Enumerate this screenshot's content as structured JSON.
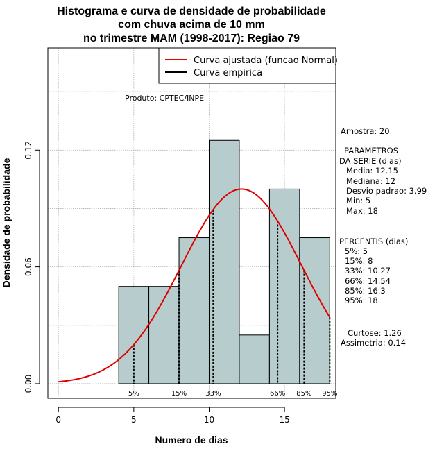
{
  "chart_data": {
    "type": "bar",
    "title_lines": [
      "Histograma e curva de densidade de probabilidade",
      "com chuva acima de 10 mm",
      "no trimestre MAM (1998-2017): Regiao 79"
    ],
    "xlabel": "Numero de dias",
    "ylabel": "Densidade de probabilidade",
    "xlim": [
      -0.7,
      18.4
    ],
    "ylim": [
      -0.0075,
      0.1725
    ],
    "x_ticks": [
      0,
      5,
      10,
      15
    ],
    "y_ticks": [
      0.0,
      0.06,
      0.12
    ],
    "y_tick_labels": [
      "0.00",
      "0.06",
      "0.12"
    ],
    "grid": true,
    "bins": [
      {
        "start": 4,
        "end": 6,
        "density": 0.05
      },
      {
        "start": 6,
        "end": 8,
        "density": 0.05
      },
      {
        "start": 8,
        "end": 10,
        "density": 0.075
      },
      {
        "start": 10,
        "end": 12,
        "density": 0.125
      },
      {
        "start": 12,
        "end": 14,
        "density": 0.025
      },
      {
        "start": 14,
        "end": 16,
        "density": 0.1
      },
      {
        "start": 16,
        "end": 18,
        "density": 0.075
      }
    ],
    "bar_color": "#b7cdcd",
    "normal_curve": {
      "mean": 12.15,
      "sd": 3.99,
      "x_range": [
        0,
        18
      ],
      "color": "#e00000"
    },
    "percentiles": [
      {
        "label": "5%",
        "value": 5
      },
      {
        "label": "15%",
        "value": 8
      },
      {
        "label": "33%",
        "value": 10.27
      },
      {
        "label": "66%",
        "value": 14.54
      },
      {
        "label": "85%",
        "value": 16.3
      },
      {
        "label": "95%",
        "value": 18
      }
    ],
    "legend": {
      "position": "top-right",
      "entries": [
        {
          "label": "Curva ajustada (funcao Normal)",
          "color": "#e00000"
        },
        {
          "label": "Curva empirica",
          "color": "#000000"
        }
      ]
    },
    "annotation": "Produto: CPTEC/INPE"
  },
  "stats": {
    "sample": "Amostra: 20",
    "params_header": "PARAMETROS",
    "params_subheader": "DA SERIE (dias)",
    "params": [
      "Media: 12.15",
      "Mediana: 12",
      "Desvio padrao: 3.99",
      "Min: 5",
      "Max: 18"
    ],
    "percentis_header": "PERCENTIS (dias)",
    "percentis": [
      "5%: 5",
      "15%: 8",
      "33%: 10.27",
      "66%: 14.54",
      "85%: 16.3",
      "95%: 18"
    ],
    "curtose": "Curtose: 1.26",
    "assimetria": "Assimetria: 0.14"
  }
}
